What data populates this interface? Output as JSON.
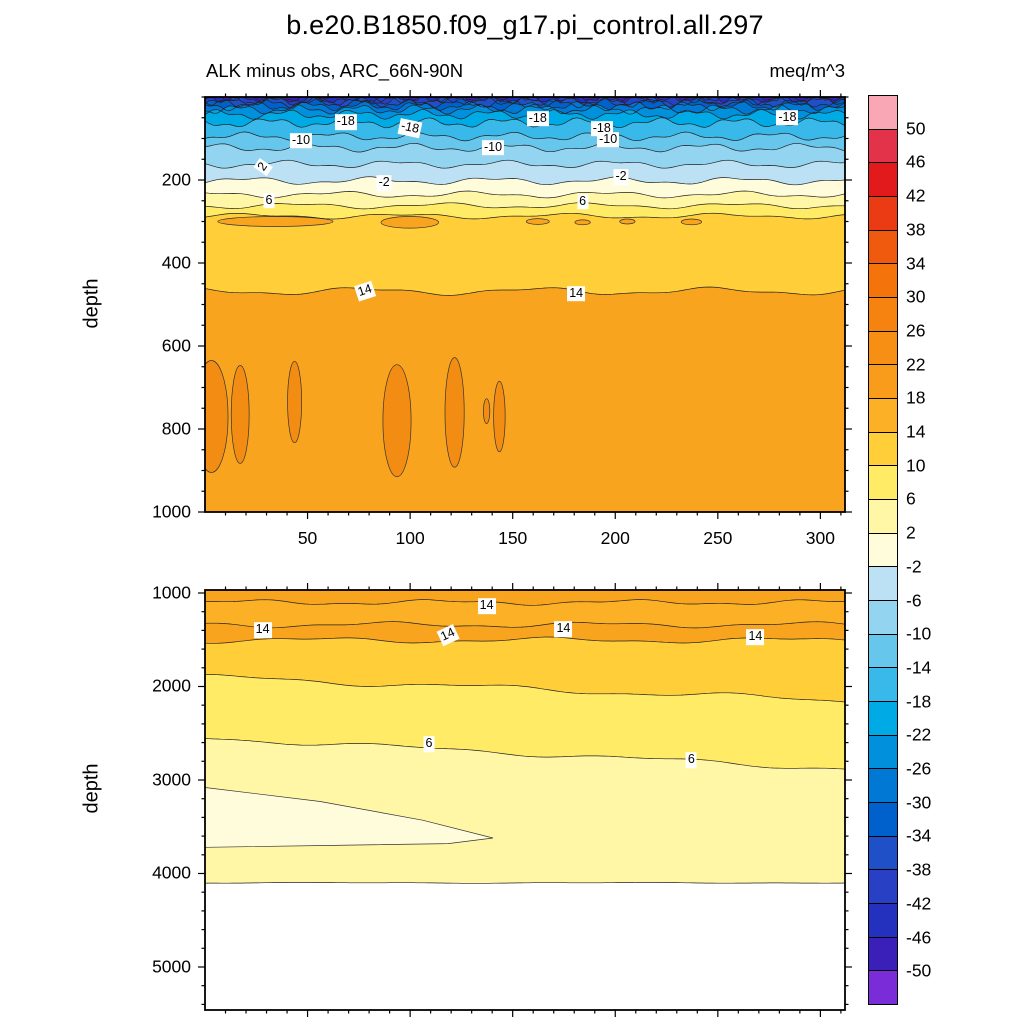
{
  "title": "b.e20.B1850.f09_g17.pi_control.all.297",
  "header": {
    "subtitle_left": "ALK minus obs, ARC_66N-90N",
    "subtitle_right": "meq/m^3"
  },
  "colorbar": {
    "labels": [
      "50",
      "46",
      "42",
      "38",
      "34",
      "30",
      "26",
      "22",
      "18",
      "14",
      "10",
      "6",
      "2",
      "-2",
      "-6",
      "-10",
      "-14",
      "-18",
      "-22",
      "-26",
      "-30",
      "-34",
      "-38",
      "-42",
      "-46",
      "-50"
    ],
    "colors": [
      "#F9A7B5",
      "#E2334B",
      "#E31A1C",
      "#EA3B14",
      "#F05A0E",
      "#F4730B",
      "#F68310",
      "#F78F14",
      "#F99C1B",
      "#FBB025",
      "#FFCE38",
      "#FFEB66",
      "#FFF6A6",
      "#FFFCDC",
      "#BCE1F4",
      "#93D4F0",
      "#66C6EC",
      "#38B9E9",
      "#00AAE4",
      "#0090DC",
      "#0078D4",
      "#0060CC",
      "#2050C8",
      "#2840C4",
      "#2430BE",
      "#3A20B8",
      "#7A2CD8"
    ]
  },
  "chart_data": [
    {
      "id": "upper",
      "type": "contour-section",
      "ylabel": "depth",
      "x_range": [
        0,
        312
      ],
      "x_ticks": [
        50,
        100,
        150,
        200,
        250,
        300
      ],
      "x_minor_step": 10,
      "x_tick_labels": true,
      "depth_range": [
        0,
        1000
      ],
      "y_ticks": [
        200,
        400,
        600,
        800,
        1000
      ],
      "y_minor_step": 50,
      "background_color": "#3A20B8",
      "lines": [
        {
          "value": -46,
          "depth": 3,
          "color_below": "#2430BE",
          "wave": [
            2.5,
            30,
            1.5,
            12
          ]
        },
        {
          "value": -42,
          "depth": 6,
          "color_below": "#2840C4",
          "wave": [
            2.5,
            36,
            1.5,
            14
          ]
        },
        {
          "value": -38,
          "depth": 10,
          "color_below": "#2050C8",
          "wave": [
            3,
            42,
            1.5,
            16
          ]
        },
        {
          "value": -34,
          "depth": 15,
          "color_below": "#0060CC",
          "wave": [
            3,
            48,
            1.8,
            18
          ]
        },
        {
          "value": -30,
          "depth": 22,
          "color_below": "#0078D4",
          "wave": [
            3,
            54,
            1.8,
            21
          ]
        },
        {
          "value": -26,
          "depth": 30,
          "color_below": "#0090DC",
          "wave": [
            3.2,
            60,
            1.8,
            23
          ]
        },
        {
          "value": -22,
          "depth": 42,
          "color_below": "#00AAE4",
          "wave": [
            3.2,
            68,
            1.8,
            26
          ]
        },
        {
          "value": -18,
          "depth": 62,
          "color_below": "#38B9E9",
          "wave": [
            3.4,
            78,
            1.8,
            29
          ]
        },
        {
          "value": -14,
          "depth": 95,
          "color_below": "#66C6EC",
          "wave": [
            3,
            88,
            1.5,
            34
          ]
        },
        {
          "value": -10,
          "depth": 122,
          "color_below": "#93D4F0",
          "wave": [
            3,
            98,
            1.5,
            38
          ]
        },
        {
          "value": -6,
          "depth": 162,
          "color_below": "#BCE1F4",
          "wave": [
            2.8,
            110,
            1.3,
            44
          ]
        },
        {
          "value": -2,
          "depth": 202,
          "color_below": "#FFFCDC",
          "wave": [
            2.8,
            122,
            1.3,
            50
          ]
        },
        {
          "value": 2,
          "depth": 235,
          "color_below": "#FFF6A6",
          "wave": [
            2.4,
            134,
            1.2,
            56
          ]
        },
        {
          "value": 6,
          "depth": 262,
          "color_below": "#FFEB66",
          "wave": [
            2.2,
            146,
            1,
            62
          ]
        },
        {
          "value": 10,
          "depth": 287,
          "color_below": "#FFCE38",
          "wave": [
            2,
            158,
            1,
            68
          ]
        },
        {
          "value": 14,
          "depth": 468,
          "color_below": "#F9A41F",
          "wave": [
            3,
            175,
            1.2,
            74
          ]
        }
      ],
      "blobs": [
        {
          "x_pct": 11,
          "depth": 300,
          "rx_pct": 9,
          "ry_m": 12,
          "color": "#F9A41F"
        },
        {
          "x_pct": 32,
          "depth": 302,
          "rx_pct": 4.5,
          "ry_m": 14,
          "color": "#F9A41F"
        },
        {
          "x_pct": 52,
          "depth": 300,
          "rx_pct": 1.8,
          "ry_m": 7,
          "color": "#F9A41F"
        },
        {
          "x_pct": 59,
          "depth": 302,
          "rx_pct": 1.2,
          "ry_m": 6,
          "color": "#F9A41F"
        },
        {
          "x_pct": 66,
          "depth": 300,
          "rx_pct": 1.2,
          "ry_m": 6,
          "color": "#F9A41F"
        },
        {
          "x_pct": 76,
          "depth": 301,
          "rx_pct": 1.6,
          "ry_m": 7,
          "color": "#F9A41F"
        },
        {
          "x_pct": 1,
          "depth": 770,
          "rx_pct": 2.6,
          "ry_m": 135,
          "color": "#F28C12"
        },
        {
          "x_pct": 5.5,
          "depth": 765,
          "rx_pct": 1.4,
          "ry_m": 118,
          "color": "#F28C12"
        },
        {
          "x_pct": 14,
          "depth": 735,
          "rx_pct": 1.1,
          "ry_m": 98,
          "color": "#F28C12"
        },
        {
          "x_pct": 30,
          "depth": 780,
          "rx_pct": 2.2,
          "ry_m": 135,
          "color": "#F28C12"
        },
        {
          "x_pct": 39,
          "depth": 760,
          "rx_pct": 1.5,
          "ry_m": 132,
          "color": "#F28C12"
        },
        {
          "x_pct": 44,
          "depth": 757,
          "rx_pct": 0.5,
          "ry_m": 30,
          "color": "#F28C12"
        },
        {
          "x_pct": 46,
          "depth": 770,
          "rx_pct": 0.9,
          "ry_m": 85,
          "color": "#F28C12"
        }
      ],
      "contour_labels": [
        {
          "text": "-18",
          "x_pct": 22,
          "depth": 60,
          "rot": 0
        },
        {
          "text": "-18",
          "x_pct": 32,
          "depth": 74,
          "rot": 12
        },
        {
          "text": "-18",
          "x_pct": 52,
          "depth": 52,
          "rot": 0
        },
        {
          "text": "-18",
          "x_pct": 62,
          "depth": 76,
          "rot": 0
        },
        {
          "text": "-18",
          "x_pct": 91,
          "depth": 50,
          "rot": 0
        },
        {
          "text": "-10",
          "x_pct": 15,
          "depth": 105,
          "rot": 0
        },
        {
          "text": "-10",
          "x_pct": 45,
          "depth": 122,
          "rot": 0
        },
        {
          "text": "-10",
          "x_pct": 63,
          "depth": 103,
          "rot": 0
        },
        {
          "text": "2",
          "x_pct": 9,
          "depth": 168,
          "rot": -55
        },
        {
          "text": "-2",
          "x_pct": 28,
          "depth": 208,
          "rot": 0
        },
        {
          "text": "-2",
          "x_pct": 65,
          "depth": 193,
          "rot": 0
        },
        {
          "text": "6",
          "x_pct": 10,
          "depth": 250,
          "rot": 0
        },
        {
          "text": "6",
          "x_pct": 59,
          "depth": 252,
          "rot": 0
        },
        {
          "text": "14",
          "x_pct": 25,
          "depth": 468,
          "rot": -18
        },
        {
          "text": "14",
          "x_pct": 58,
          "depth": 474,
          "rot": 0
        }
      ]
    },
    {
      "id": "lower",
      "type": "contour-section",
      "ylabel": "depth",
      "x_range": [
        0,
        312
      ],
      "x_ticks": [
        50,
        100,
        150,
        200,
        250,
        300
      ],
      "x_minor_step": 10,
      "x_tick_labels": false,
      "depth_range": [
        968,
        5460
      ],
      "y_ticks": [
        1000,
        2000,
        3000,
        4000,
        5000
      ],
      "y_minor_step": 200,
      "background_color": "#F9A41F",
      "lines": [
        {
          "value": 14,
          "depth": 1100,
          "color_below": "#FBB025",
          "wave": [
            2,
            190,
            1,
            75
          ]
        },
        {
          "value": 14,
          "depth": 1340,
          "color_below": "#F9A41F",
          "wave": [
            2.2,
            210,
            1,
            85
          ]
        },
        {
          "value": "",
          "depth": 1505,
          "color_below": "#FFCE38",
          "wave": [
            2.2,
            230,
            1,
            95
          ]
        },
        {
          "value": "",
          "depth": 1900,
          "depth_right": 2150,
          "color_below": "#FFEB66",
          "wave": [
            2.5,
            250,
            1,
            105
          ]
        },
        {
          "value": 6,
          "depth": 2550,
          "depth_right": 2880,
          "color_below": "#FFF6A6",
          "wave": [
            2,
            260,
            1,
            115
          ]
        },
        {
          "value": "",
          "depth": 4100,
          "color_below": "#FFFFFF",
          "wave": [
            0.3,
            300,
            0.2,
            120
          ]
        }
      ],
      "patches": [
        {
          "color": "#FFFCDC",
          "points": [
            [
              0,
              3080
            ],
            [
              18,
              3230
            ],
            [
              34,
              3430
            ],
            [
              45,
              3620
            ],
            [
              38,
              3680
            ],
            [
              20,
              3700
            ],
            [
              0,
              3720
            ]
          ]
        }
      ],
      "contour_labels": [
        {
          "text": "14",
          "x_pct": 44,
          "depth": 1140,
          "rot": 0
        },
        {
          "text": "14",
          "x_pct": 9,
          "depth": 1395,
          "rot": 0
        },
        {
          "text": "14",
          "x_pct": 38,
          "depth": 1445,
          "rot": -25
        },
        {
          "text": "14",
          "x_pct": 56,
          "depth": 1390,
          "rot": 0
        },
        {
          "text": "14",
          "x_pct": 86,
          "depth": 1470,
          "rot": 0
        },
        {
          "text": "6",
          "x_pct": 35,
          "depth": 2620,
          "rot": 0
        },
        {
          "text": "6",
          "x_pct": 76,
          "depth": 2790,
          "rot": 0
        }
      ]
    }
  ]
}
